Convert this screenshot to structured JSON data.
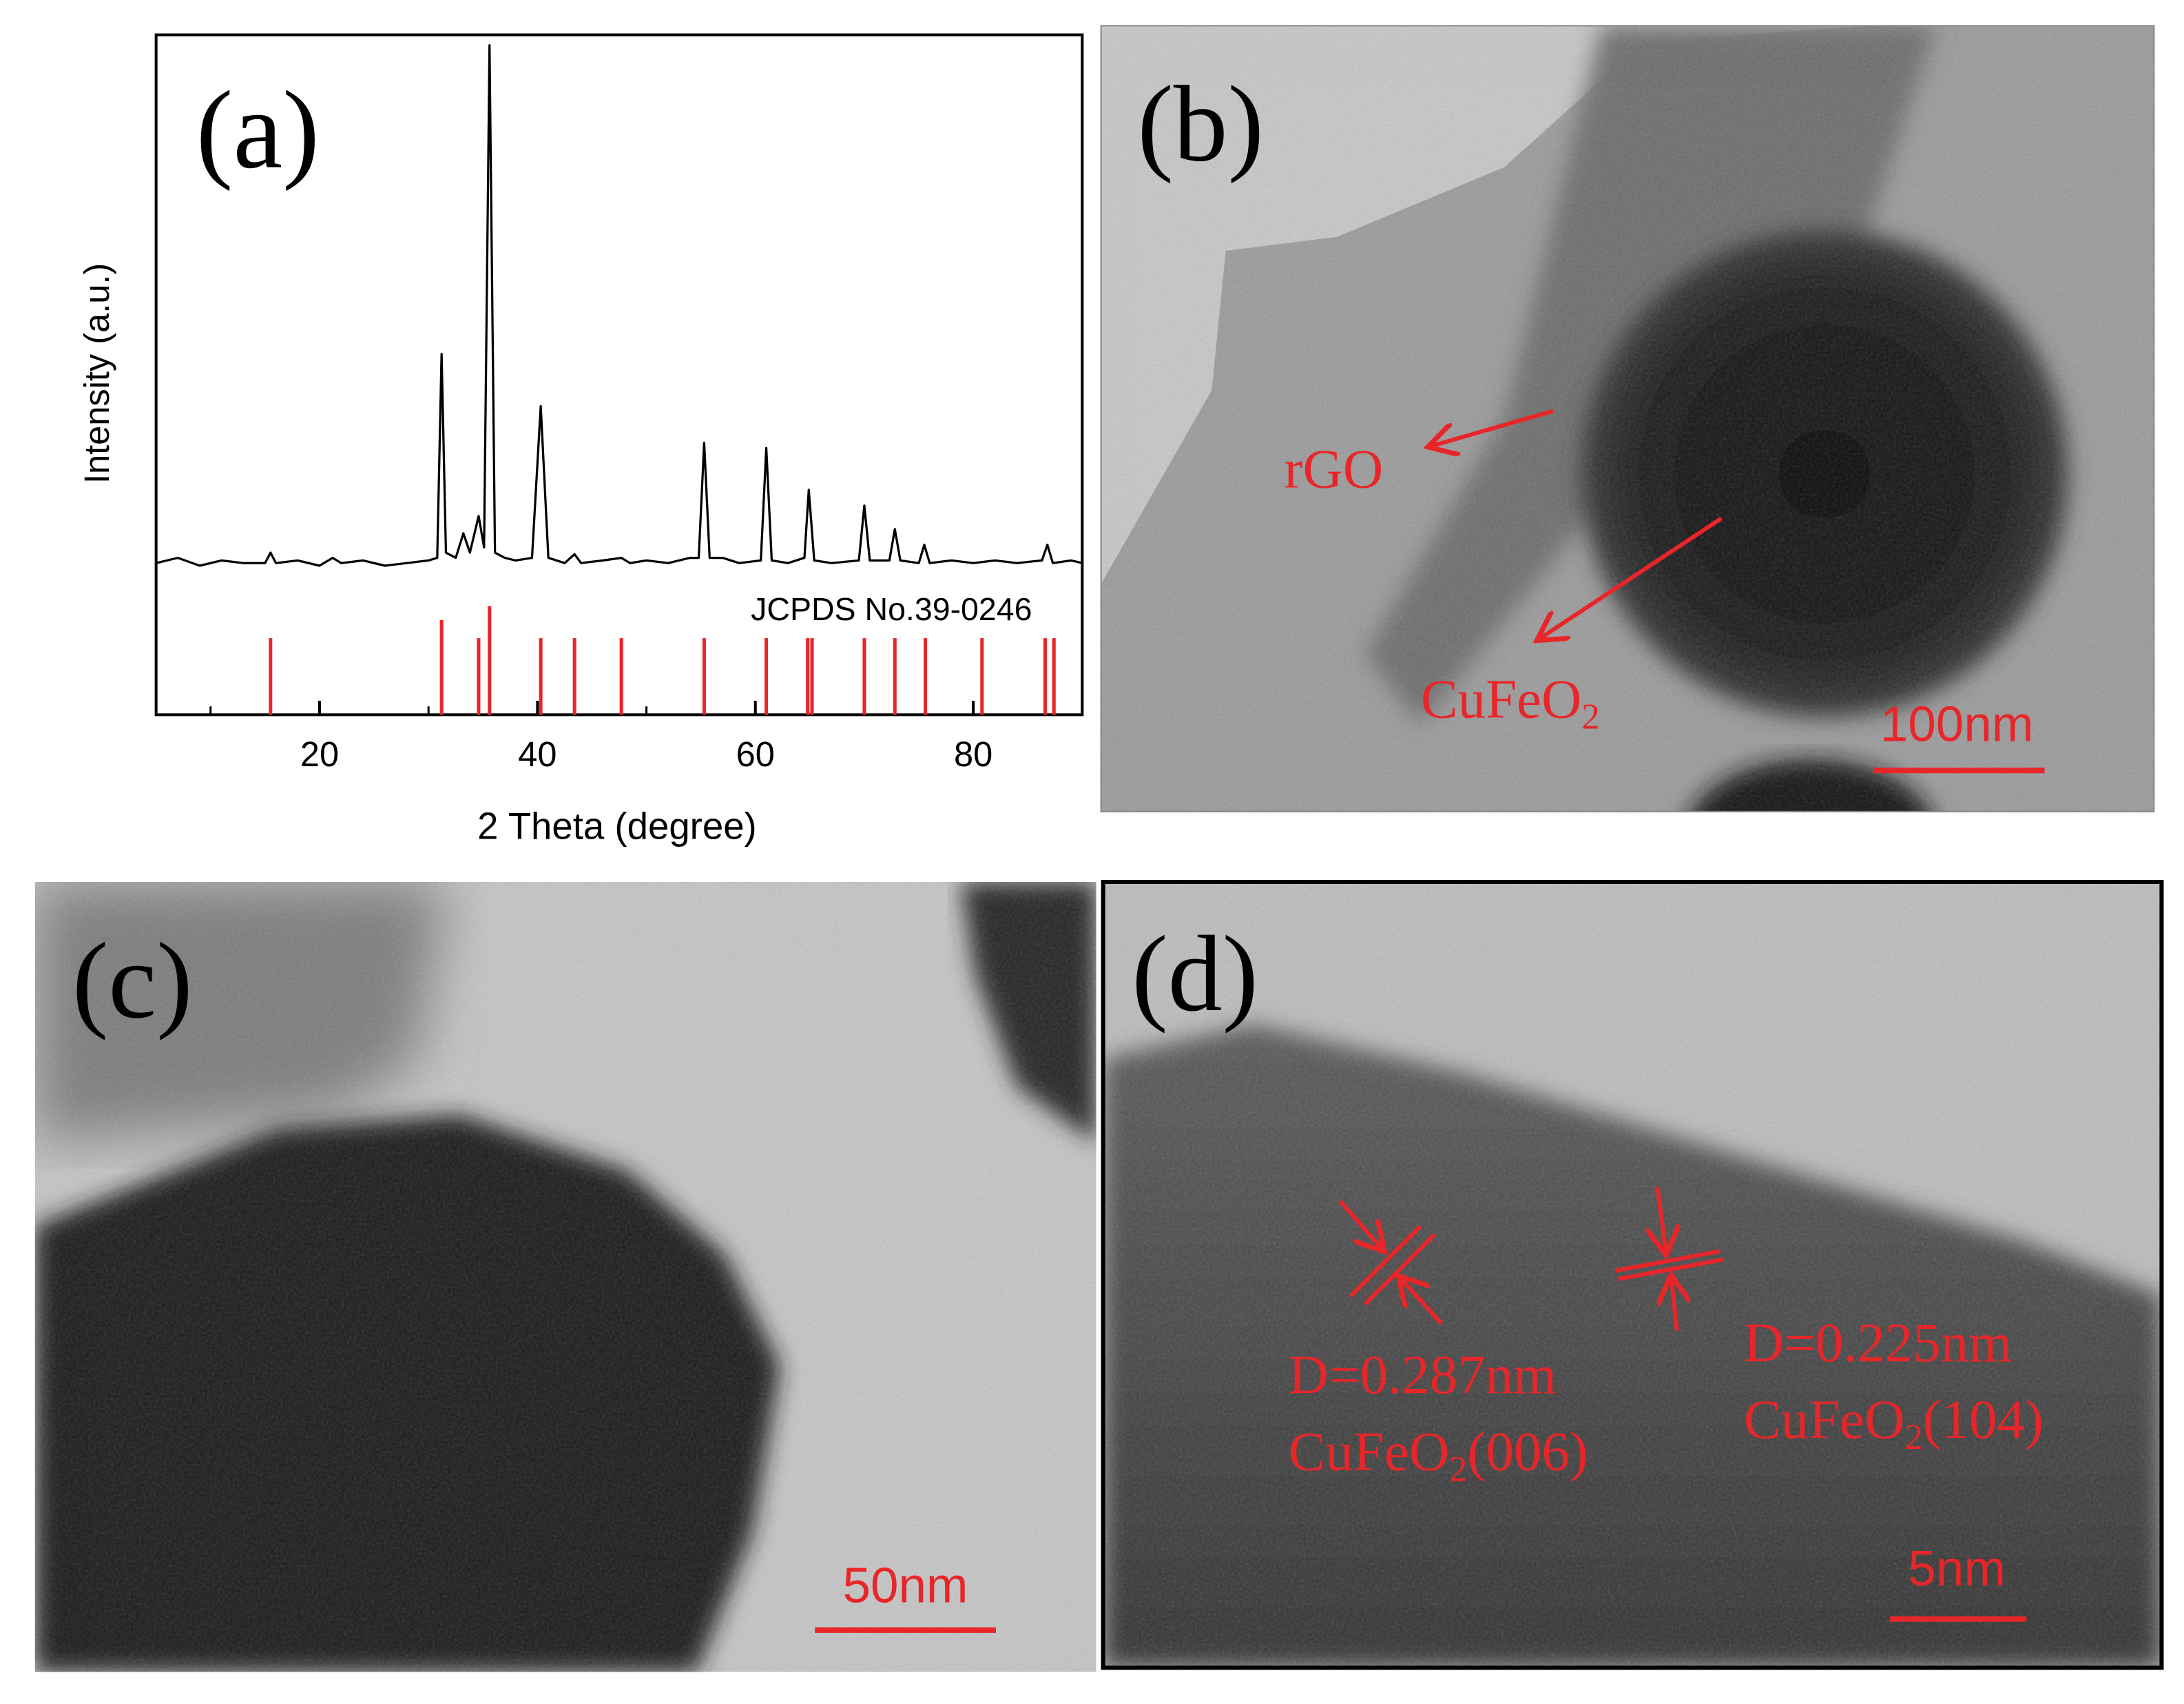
{
  "chart_data": {
    "type": "line",
    "label": "(a)",
    "x_label": "2 Theta (degree)",
    "y_label": "Intensity (a.u.)",
    "color": "#000000",
    "x": [
      5,
      7,
      9,
      11,
      13,
      15,
      15.5,
      16,
      18,
      20,
      21.2,
      22,
      24,
      26,
      28,
      30,
      30.8,
      31.2,
      31.6,
      32.5,
      33.2,
      33.8,
      34.6,
      35.1,
      35.6,
      36.1,
      37,
      38,
      39.5,
      40.3,
      41,
      42.5,
      43.4,
      44,
      46,
      47.7,
      48.5,
      50,
      52,
      54,
      54.8,
      55.3,
      55.8,
      57,
      58.5,
      60.5,
      61,
      61.5,
      63,
      64.5,
      64.9,
      65.4,
      67,
      69.5,
      70,
      70.5,
      72.3,
      72.8,
      73.3,
      75,
      75.5,
      76,
      78,
      80,
      82,
      84,
      86.3,
      86.8,
      87.3,
      89,
      90
    ],
    "values": [
      1,
      2,
      0.5,
      1.5,
      1,
      1,
      3,
      1,
      1.5,
      0.5,
      2,
      1,
      1.5,
      0.5,
      1,
      1.5,
      2,
      41,
      3,
      2,
      6.7,
      3,
      10,
      4,
      100,
      3,
      2,
      1.5,
      2,
      31,
      2,
      1,
      2.7,
      1,
      1.5,
      2,
      1,
      1.5,
      1,
      2,
      2,
      24,
      2,
      2,
      1,
      1.5,
      23,
      1.5,
      1,
      2,
      15,
      1.5,
      1,
      1.5,
      12,
      1.5,
      1.5,
      7.5,
      1.5,
      1,
      4.5,
      1,
      1.5,
      1,
      1.5,
      1,
      1.5,
      4.5,
      1,
      1.5,
      1
    ],
    "xlim": [
      5,
      90
    ],
    "ylim": [
      -28,
      102
    ],
    "xticks": [
      20,
      40,
      60,
      80
    ],
    "xminorticks": [
      10,
      30,
      50,
      70,
      90
    ],
    "reference": {
      "label": "JCPDS No.39-0246",
      "color": "#e8262a",
      "x": [
        15.5,
        31.2,
        34.6,
        35.6,
        40.3,
        43.4,
        47.7,
        55.3,
        61.0,
        64.8,
        65.2,
        70.0,
        72.8,
        75.6,
        80.8,
        86.6,
        87.4
      ],
      "values": [
        55,
        68,
        55,
        78,
        55,
        55,
        55,
        55,
        55,
        55,
        55,
        55,
        55,
        55,
        55,
        55,
        55
      ],
      "ylim": [
        0,
        100
      ]
    }
  },
  "panels": [
    {
      "label": "(b)",
      "annotations": [
        {
          "text": "rGO"
        },
        {
          "text": "CuFeO",
          "sub": "2"
        }
      ],
      "scale_bar": "100nm"
    },
    {
      "label": "(c)",
      "scale_bar": "50nm"
    },
    {
      "label": "(d)",
      "annotations": [
        {
          "text": "D=0.287nm"
        },
        {
          "text": "CuFeO",
          "sub": "2",
          "after": "(006)"
        },
        {
          "text": "D=0.225nm"
        },
        {
          "text": "CuFeO",
          "sub": "2",
          "after": "(104)"
        }
      ],
      "scale_bar": "5nm"
    }
  ]
}
